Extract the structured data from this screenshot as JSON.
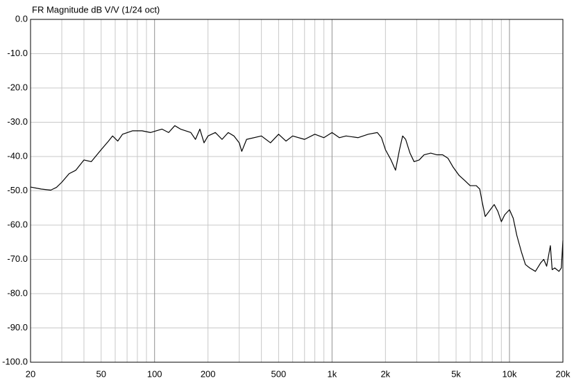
{
  "chart_data": {
    "type": "line",
    "title": "FR Magnitude dB V/V (1/24 oct)",
    "log_x": true,
    "grid": true,
    "color": "#000000",
    "xlim": [
      20,
      20000
    ],
    "ylim": [
      -100,
      0
    ],
    "xticks": [
      20,
      50,
      100,
      200,
      500,
      {
        "value": 1000,
        "label": "1k"
      },
      {
        "value": 2000,
        "label": "2k"
      },
      {
        "value": 5000,
        "label": "5k"
      },
      {
        "value": 10000,
        "label": "10k"
      },
      {
        "value": 20000,
        "label": "20k"
      }
    ],
    "xgrid": [
      30,
      40,
      60,
      70,
      80,
      90,
      300,
      400,
      600,
      700,
      800,
      900,
      3000,
      4000,
      6000,
      7000,
      8000,
      9000
    ],
    "yticks": [
      {
        "value": 0,
        "label": "0.0"
      },
      {
        "value": -10,
        "label": "-10.0"
      },
      {
        "value": -20,
        "label": "-20.0"
      },
      {
        "value": -30,
        "label": "-30.0"
      },
      {
        "value": -40,
        "label": "-40.0"
      },
      {
        "value": -50,
        "label": "-50.0"
      },
      {
        "value": -60,
        "label": "-60.0"
      },
      {
        "value": -70,
        "label": "-70.0"
      },
      {
        "value": -80,
        "label": "-80.0"
      },
      {
        "value": -90,
        "label": "-90.0"
      },
      {
        "value": -100,
        "label": "-100.0"
      }
    ],
    "x": [
      20,
      23,
      26,
      28,
      30,
      33,
      36,
      40,
      44,
      50,
      55,
      58,
      62,
      66,
      75,
      85,
      95,
      110,
      120,
      130,
      140,
      160,
      170,
      180,
      190,
      200,
      220,
      240,
      260,
      280,
      300,
      310,
      330,
      400,
      450,
      500,
      550,
      600,
      700,
      800,
      900,
      1000,
      1100,
      1200,
      1400,
      1600,
      1800,
      1900,
      2000,
      2150,
      2280,
      2400,
      2500,
      2600,
      2750,
      2900,
      3100,
      3300,
      3600,
      3900,
      4200,
      4500,
      4800,
      5200,
      5600,
      6000,
      6500,
      6800,
      7000,
      7300,
      7800,
      8200,
      8600,
      9000,
      9400,
      10000,
      10500,
      11000,
      11700,
      12300,
      13000,
      14000,
      15000,
      15600,
      16200,
      17000,
      17400,
      18000,
      19000,
      19600,
      20000
    ],
    "values": [
      -48.9,
      -49.5,
      -49.8,
      -49,
      -47.5,
      -45,
      -44,
      -41,
      -41.5,
      -38,
      -35.5,
      -34,
      -35.5,
      -33.5,
      -32.5,
      -32.5,
      -33,
      -32,
      -33,
      -31,
      -32,
      -33,
      -35,
      -32,
      -36,
      -34,
      -33,
      -35,
      -33,
      -34,
      -36,
      -38.5,
      -35,
      -34,
      -36,
      -33.5,
      -35.5,
      -34,
      -35,
      -33.5,
      -34.5,
      -33,
      -34.5,
      -34,
      -34.5,
      -33.5,
      -33,
      -34.5,
      -38,
      -41,
      -44,
      -38,
      -34,
      -35,
      -39,
      -41.5,
      -41,
      -39.5,
      -39,
      -39.5,
      -39.5,
      -40.5,
      -43,
      -45.5,
      -47,
      -48.5,
      -48.5,
      -49.5,
      -53,
      -57.5,
      -55.5,
      -54,
      -56,
      -59,
      -57,
      -55.5,
      -58,
      -63,
      -68,
      -71.5,
      -72.5,
      -73.5,
      -71,
      -70,
      -72,
      -66,
      -73,
      -72.5,
      -73.5,
      -72.5,
      -64.5
    ]
  }
}
